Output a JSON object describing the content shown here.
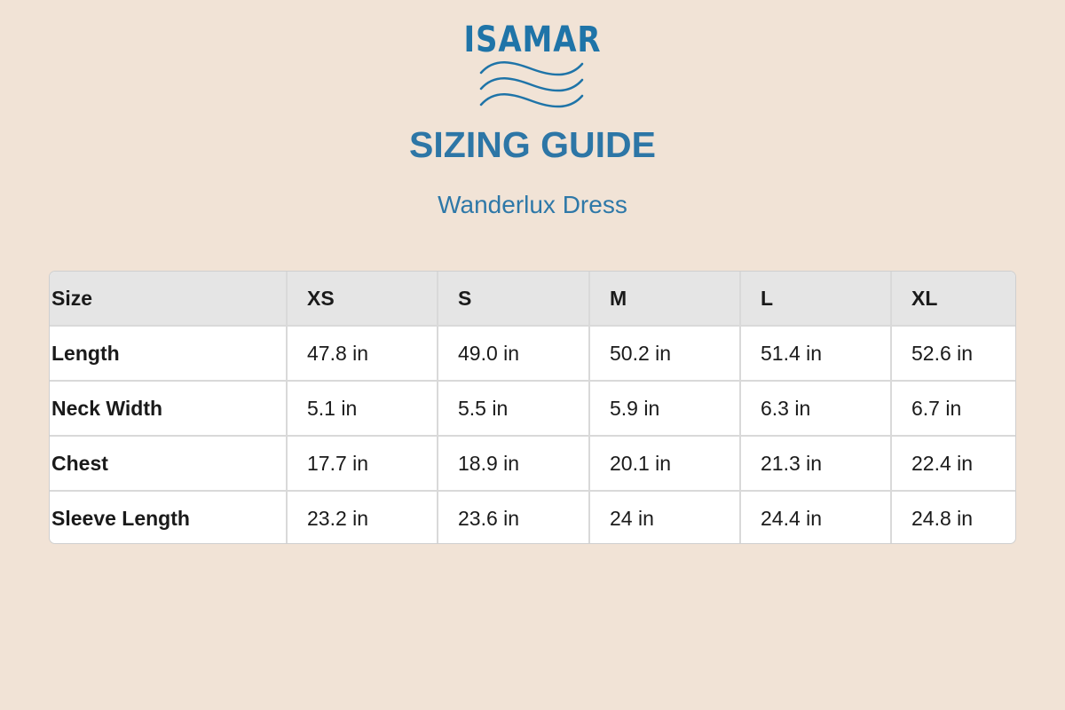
{
  "brand": {
    "name": "ISAMAR",
    "logo_icon": "waves-icon",
    "color": "#1f74a8"
  },
  "title": "SIZING GUIDE",
  "subtitle": "Wanderlux Dress",
  "table": {
    "header": [
      "Size",
      "XS",
      "S",
      "M",
      "L",
      "XL"
    ],
    "rows": [
      {
        "label": "Length",
        "values": [
          "47.8 in",
          "49.0 in",
          "50.2 in",
          "51.4 in",
          "52.6 in"
        ]
      },
      {
        "label": "Neck Width",
        "values": [
          "5.1 in",
          "5.5 in",
          "5.9 in",
          "6.3 in",
          "6.7 in"
        ]
      },
      {
        "label": "Chest",
        "values": [
          "17.7 in",
          "18.9 in",
          "20.1 in",
          "21.3 in",
          "22.4 in"
        ]
      },
      {
        "label": "Sleeve Length",
        "values": [
          "23.2 in",
          "23.6 in",
          "24 in",
          "24.4 in",
          "24.8 in"
        ]
      }
    ]
  }
}
